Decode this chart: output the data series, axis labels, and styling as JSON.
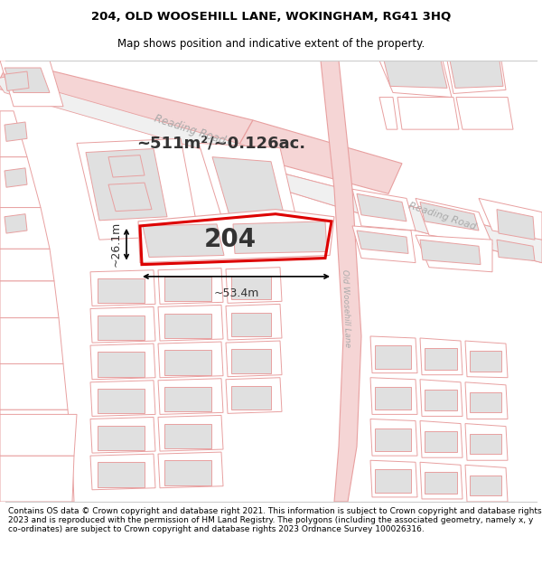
{
  "title_line1": "204, OLD WOOSEHILL LANE, WOKINGHAM, RG41 3HQ",
  "title_line2": "Map shows position and indicative extent of the property.",
  "footer_text": "Contains OS data © Crown copyright and database right 2021. This information is subject to Crown copyright and database rights 2023 and is reproduced with the permission of HM Land Registry. The polygons (including the associated geometry, namely x, y co-ordinates) are subject to Crown copyright and database rights 2023 Ordnance Survey 100026316.",
  "area_text": "~511m²/~0.126ac.",
  "property_label": "204",
  "dim_width": "~53.4m",
  "dim_height": "~26.1m",
  "bg_color": "#ffffff",
  "map_bg": "#f8f8f8",
  "road_fill": "#f5d5d5",
  "road_edge": "#e8a0a0",
  "plot_edge": "#e8a0a0",
  "plot_fill": "#ffffff",
  "bld_fill": "#e0e0e0",
  "bld_edge": "#e8a0a0",
  "prop_stroke": "#dd0000",
  "prop_fill": "#ffffff",
  "text_color": "#333333",
  "road_label_color": "#aaaaaa",
  "title_fontsize": 9.5,
  "subtitle_fontsize": 8.5,
  "footer_fontsize": 6.5,
  "area_fontsize": 13,
  "label_fontsize": 20,
  "dim_fontsize": 9
}
